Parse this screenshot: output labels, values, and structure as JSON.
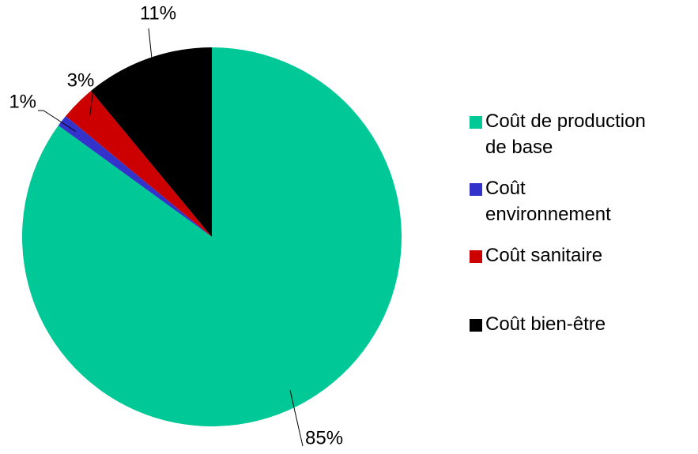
{
  "chart_data": {
    "type": "pie",
    "categories": [
      "Coût de production de base",
      "Coût environnement",
      "Coût sanitaire",
      "Coût bien-être"
    ],
    "values": [
      85,
      1,
      3,
      11
    ],
    "value_labels": [
      "85%",
      "1%",
      "3%",
      "11%"
    ],
    "colors": [
      "#00c896",
      "#3333cc",
      "#cc0000",
      "#000000"
    ],
    "legend": "right"
  }
}
